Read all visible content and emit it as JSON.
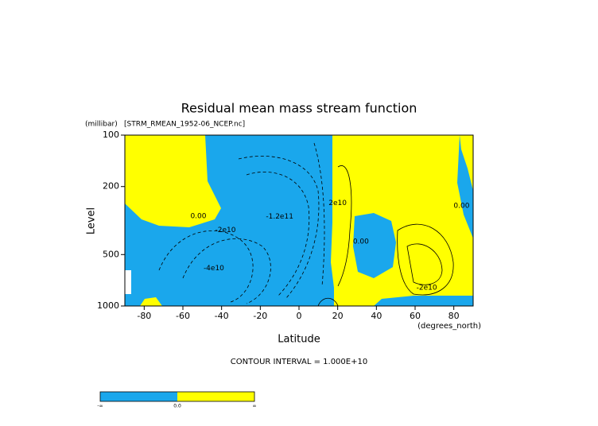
{
  "chart_data": {
    "type": "contour",
    "title": "Residual mean mass stream function",
    "subtitle": "[STRM_RMEAN_1952-06_NCEP.nc]",
    "x_label": "Latitude",
    "x_units": "(degrees_north)",
    "y_label": "Level",
    "y_units": "(millibar)",
    "xlim": [
      -90,
      90
    ],
    "xticks": [
      -80,
      -60,
      -40,
      -20,
      0,
      20,
      40,
      60,
      80
    ],
    "ylim": [
      1000,
      100
    ],
    "yticks": [
      100,
      200,
      500,
      1000
    ],
    "y_log": true,
    "note": "CONTOUR INTERVAL = 1.000E+10",
    "negative_color": "#1aa7ec",
    "positive_color": "#ffff00",
    "annotations": [
      {
        "text": "0.00",
        "x": -52,
        "y": 298
      },
      {
        "text": "-2e10",
        "x": -38,
        "y": 360
      },
      {
        "text": "-4e10",
        "x": -44,
        "y": 600
      },
      {
        "text": "-1.2e11",
        "x": -10,
        "y": 300
      },
      {
        "text": "2e10",
        "x": 20,
        "y": 250
      },
      {
        "text": "0.00",
        "x": 32,
        "y": 420
      },
      {
        "text": "0.00",
        "x": 84,
        "y": 260
      },
      {
        "text": "-2e10",
        "x": 66,
        "y": 780
      }
    ],
    "colorbar_labels": [
      "-∞",
      "0.0",
      "∞"
    ]
  }
}
